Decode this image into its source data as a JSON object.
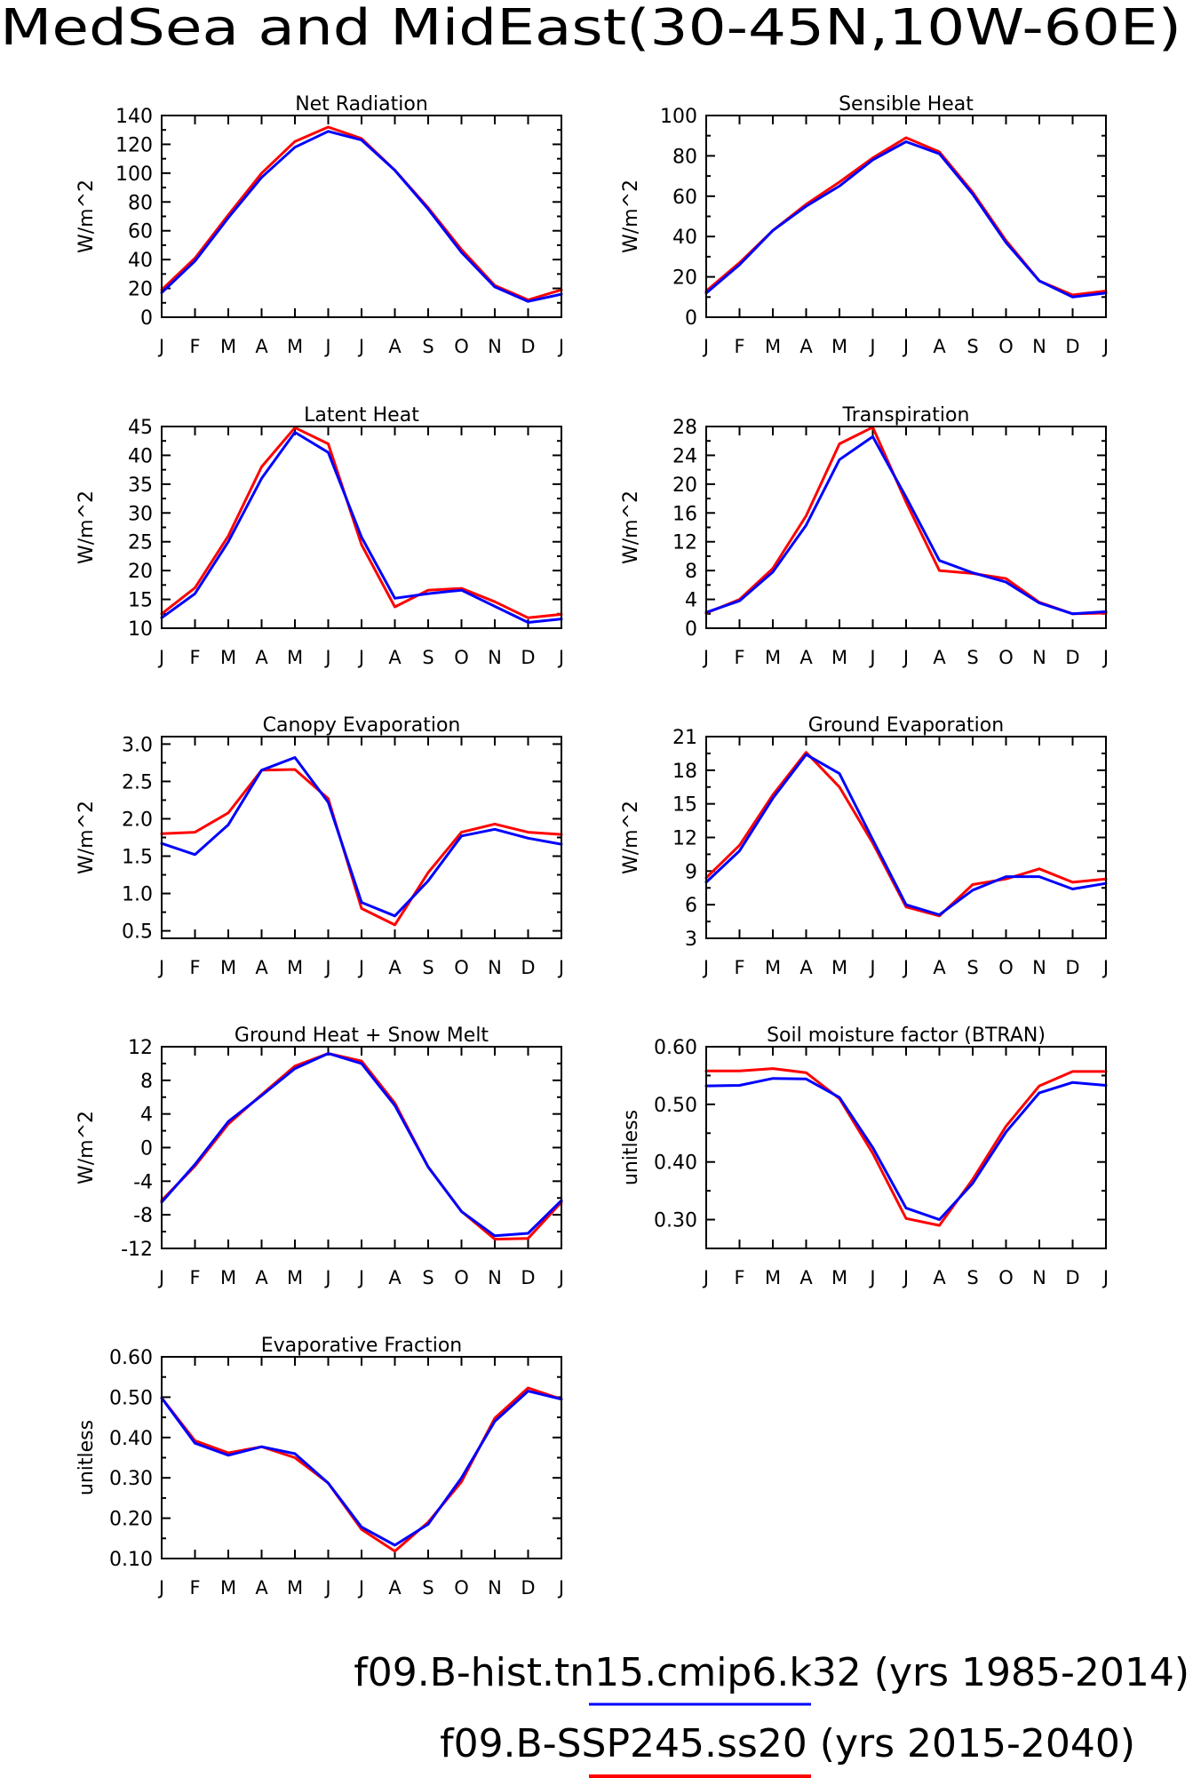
{
  "figure": {
    "title": "MedSea and MidEast(30-45N,10W-60E)"
  },
  "legend": [
    {
      "label": "f09.B-hist.tn15.cmip6.k32 (yrs 1985-2014)",
      "color": "#0000ff"
    },
    {
      "label": "f09.B-SSP245.ss20 (yrs 2015-2040)",
      "color": "#ff0000"
    }
  ],
  "chart_data": [
    {
      "type": "line",
      "title": "Net Radiation",
      "ylabel": "W/m^2",
      "categories": [
        "J",
        "F",
        "M",
        "A",
        "M",
        "J",
        "J",
        "A",
        "S",
        "O",
        "N",
        "D",
        "J"
      ],
      "ylim": [
        0,
        140
      ],
      "yticks": [
        0,
        20,
        40,
        60,
        80,
        100,
        120,
        140
      ],
      "ytick_labels": [
        "0",
        "20",
        "40",
        "60",
        "80",
        "100",
        "120",
        "140"
      ],
      "series": [
        {
          "color": "#ff0000",
          "values": [
            19,
            41,
            71,
            100,
            122,
            132,
            124,
            102,
            76,
            47,
            22,
            12,
            19
          ]
        },
        {
          "color": "#0000ff",
          "values": [
            17,
            39,
            69,
            97,
            118,
            129,
            123,
            102,
            75,
            45,
            21,
            11,
            16
          ]
        }
      ]
    },
    {
      "type": "line",
      "title": "Sensible Heat",
      "ylabel": "W/m^2",
      "categories": [
        "J",
        "F",
        "M",
        "A",
        "M",
        "J",
        "J",
        "A",
        "S",
        "O",
        "N",
        "D",
        "J"
      ],
      "ylim": [
        0,
        100
      ],
      "yticks": [
        0,
        20,
        40,
        60,
        80,
        100
      ],
      "ytick_labels": [
        "0",
        "20",
        "40",
        "60",
        "80",
        "100"
      ],
      "series": [
        {
          "color": "#ff0000",
          "values": [
            13,
            27,
            43,
            56,
            67,
            79,
            89,
            82,
            62,
            38,
            18,
            11,
            13
          ]
        },
        {
          "color": "#0000ff",
          "values": [
            12,
            26,
            43,
            55,
            65,
            78,
            87,
            81,
            61,
            37,
            18,
            10,
            12
          ]
        }
      ]
    },
    {
      "type": "line",
      "title": "Latent Heat",
      "ylabel": "W/m^2",
      "categories": [
        "J",
        "F",
        "M",
        "A",
        "M",
        "J",
        "J",
        "A",
        "S",
        "O",
        "N",
        "D",
        "J"
      ],
      "ylim": [
        10,
        45
      ],
      "yticks": [
        10,
        15,
        20,
        25,
        30,
        35,
        40,
        45
      ],
      "ytick_labels": [
        "10",
        "15",
        "20",
        "25",
        "30",
        "35",
        "40",
        "45"
      ],
      "series": [
        {
          "color": "#ff0000",
          "values": [
            12.5,
            17,
            26,
            38,
            44.8,
            42,
            24.5,
            13.7,
            16.6,
            16.9,
            14.6,
            11.8,
            12.4
          ]
        },
        {
          "color": "#0000ff",
          "values": [
            11.8,
            16,
            25,
            36,
            44,
            40.5,
            25.8,
            15.2,
            16,
            16.6,
            13.8,
            11,
            11.6
          ]
        }
      ]
    },
    {
      "type": "line",
      "title": "Transpiration",
      "ylabel": "W/m^2",
      "categories": [
        "J",
        "F",
        "M",
        "A",
        "M",
        "J",
        "J",
        "A",
        "S",
        "O",
        "N",
        "D",
        "J"
      ],
      "ylim": [
        0,
        28
      ],
      "yticks": [
        0,
        4,
        8,
        12,
        16,
        20,
        24,
        28
      ],
      "ytick_labels": [
        "0",
        "4",
        "8",
        "12",
        "16",
        "20",
        "24",
        "28"
      ],
      "series": [
        {
          "color": "#ff0000",
          "values": [
            2.1,
            4,
            8.3,
            15.6,
            25.6,
            27.9,
            17.5,
            8,
            7.6,
            6.9,
            3.6,
            2,
            2.1
          ]
        },
        {
          "color": "#0000ff",
          "values": [
            2.2,
            3.8,
            7.8,
            14.3,
            23.4,
            26.6,
            18.2,
            9.4,
            7.7,
            6.4,
            3.5,
            2,
            2.3
          ]
        }
      ]
    },
    {
      "type": "line",
      "title": "Canopy Evaporation",
      "ylabel": "W/m^2",
      "categories": [
        "J",
        "F",
        "M",
        "A",
        "M",
        "J",
        "J",
        "A",
        "S",
        "O",
        "N",
        "D",
        "J"
      ],
      "ylim": [
        0.4,
        3.1
      ],
      "yticks": [
        0.5,
        1.0,
        1.5,
        2.0,
        2.5,
        3.0
      ],
      "ytick_labels": [
        "0.5",
        "1.0",
        "1.5",
        "2.0",
        "2.5",
        "3.0"
      ],
      "series": [
        {
          "color": "#ff0000",
          "values": [
            1.8,
            1.82,
            2.08,
            2.65,
            2.66,
            2.27,
            0.8,
            0.58,
            1.28,
            1.82,
            1.93,
            1.82,
            1.79
          ]
        },
        {
          "color": "#0000ff",
          "values": [
            1.67,
            1.52,
            1.92,
            2.65,
            2.82,
            2.22,
            0.88,
            0.7,
            1.17,
            1.77,
            1.86,
            1.74,
            1.66
          ]
        }
      ]
    },
    {
      "type": "line",
      "title": "Ground Evaporation",
      "ylabel": "W/m^2",
      "categories": [
        "J",
        "F",
        "M",
        "A",
        "M",
        "J",
        "J",
        "A",
        "S",
        "O",
        "N",
        "D",
        "J"
      ],
      "ylim": [
        3,
        21
      ],
      "yticks": [
        3,
        6,
        9,
        12,
        15,
        18,
        21
      ],
      "ytick_labels": [
        "3",
        "6",
        "9",
        "12",
        "15",
        "18",
        "21"
      ],
      "series": [
        {
          "color": "#ff0000",
          "values": [
            8.4,
            11.3,
            15.8,
            19.6,
            16.5,
            11.5,
            5.8,
            5,
            7.8,
            8.3,
            9.2,
            8,
            8.3
          ]
        },
        {
          "color": "#0000ff",
          "values": [
            8,
            10.8,
            15.5,
            19.4,
            17.7,
            11.8,
            6,
            5.1,
            7.3,
            8.5,
            8.5,
            7.4,
            7.9
          ]
        }
      ]
    },
    {
      "type": "line",
      "title": "Ground Heat + Snow Melt",
      "ylabel": "W/m^2",
      "categories": [
        "J",
        "F",
        "M",
        "A",
        "M",
        "J",
        "J",
        "A",
        "S",
        "O",
        "N",
        "D",
        "J"
      ],
      "ylim": [
        -12,
        12
      ],
      "yticks": [
        -12,
        -8,
        -4,
        0,
        4,
        8,
        12
      ],
      "ytick_labels": [
        "-12",
        "-8",
        "-4",
        "0",
        "4",
        "8",
        "12"
      ],
      "series": [
        {
          "color": "#ff0000",
          "values": [
            -6.3,
            -2.2,
            2.8,
            6.3,
            9.7,
            11.2,
            10.3,
            5.3,
            -2.3,
            -7.6,
            -10.9,
            -10.8,
            -6.5
          ]
        },
        {
          "color": "#0000ff",
          "values": [
            -6.5,
            -2,
            3.1,
            6.2,
            9.4,
            11.2,
            10,
            5,
            -2.3,
            -7.6,
            -10.5,
            -10.2,
            -6.3
          ]
        }
      ]
    },
    {
      "type": "line",
      "title": "Soil moisture factor (BTRAN)",
      "ylabel": "unitless",
      "categories": [
        "J",
        "F",
        "M",
        "A",
        "M",
        "J",
        "J",
        "A",
        "S",
        "O",
        "N",
        "D",
        "J"
      ],
      "ylim": [
        0.25,
        0.6
      ],
      "yticks": [
        0.3,
        0.4,
        0.5,
        0.6
      ],
      "ytick_labels": [
        "0.30",
        "0.40",
        "0.50",
        "0.60"
      ],
      "series": [
        {
          "color": "#ff0000",
          "values": [
            0.558,
            0.558,
            0.562,
            0.555,
            0.51,
            0.415,
            0.302,
            0.29,
            0.37,
            0.462,
            0.532,
            0.557,
            0.557
          ]
        },
        {
          "color": "#0000ff",
          "values": [
            0.532,
            0.533,
            0.545,
            0.544,
            0.512,
            0.425,
            0.32,
            0.3,
            0.363,
            0.452,
            0.52,
            0.538,
            0.533
          ]
        }
      ]
    },
    {
      "type": "line",
      "title": "Evaporative Fraction",
      "ylabel": "unitless",
      "categories": [
        "J",
        "F",
        "M",
        "A",
        "M",
        "J",
        "J",
        "A",
        "S",
        "O",
        "N",
        "D",
        "J"
      ],
      "ylim": [
        0.1,
        0.6
      ],
      "yticks": [
        0.1,
        0.2,
        0.3,
        0.4,
        0.5,
        0.6
      ],
      "ytick_labels": [
        "0.10",
        "0.20",
        "0.30",
        "0.40",
        "0.50",
        "0.60"
      ],
      "series": [
        {
          "color": "#ff0000",
          "values": [
            0.498,
            0.392,
            0.362,
            0.377,
            0.35,
            0.287,
            0.172,
            0.118,
            0.19,
            0.29,
            0.448,
            0.523,
            0.495
          ]
        },
        {
          "color": "#0000ff",
          "values": [
            0.498,
            0.386,
            0.356,
            0.377,
            0.36,
            0.287,
            0.178,
            0.133,
            0.185,
            0.3,
            0.44,
            0.515,
            0.495
          ]
        }
      ]
    }
  ]
}
